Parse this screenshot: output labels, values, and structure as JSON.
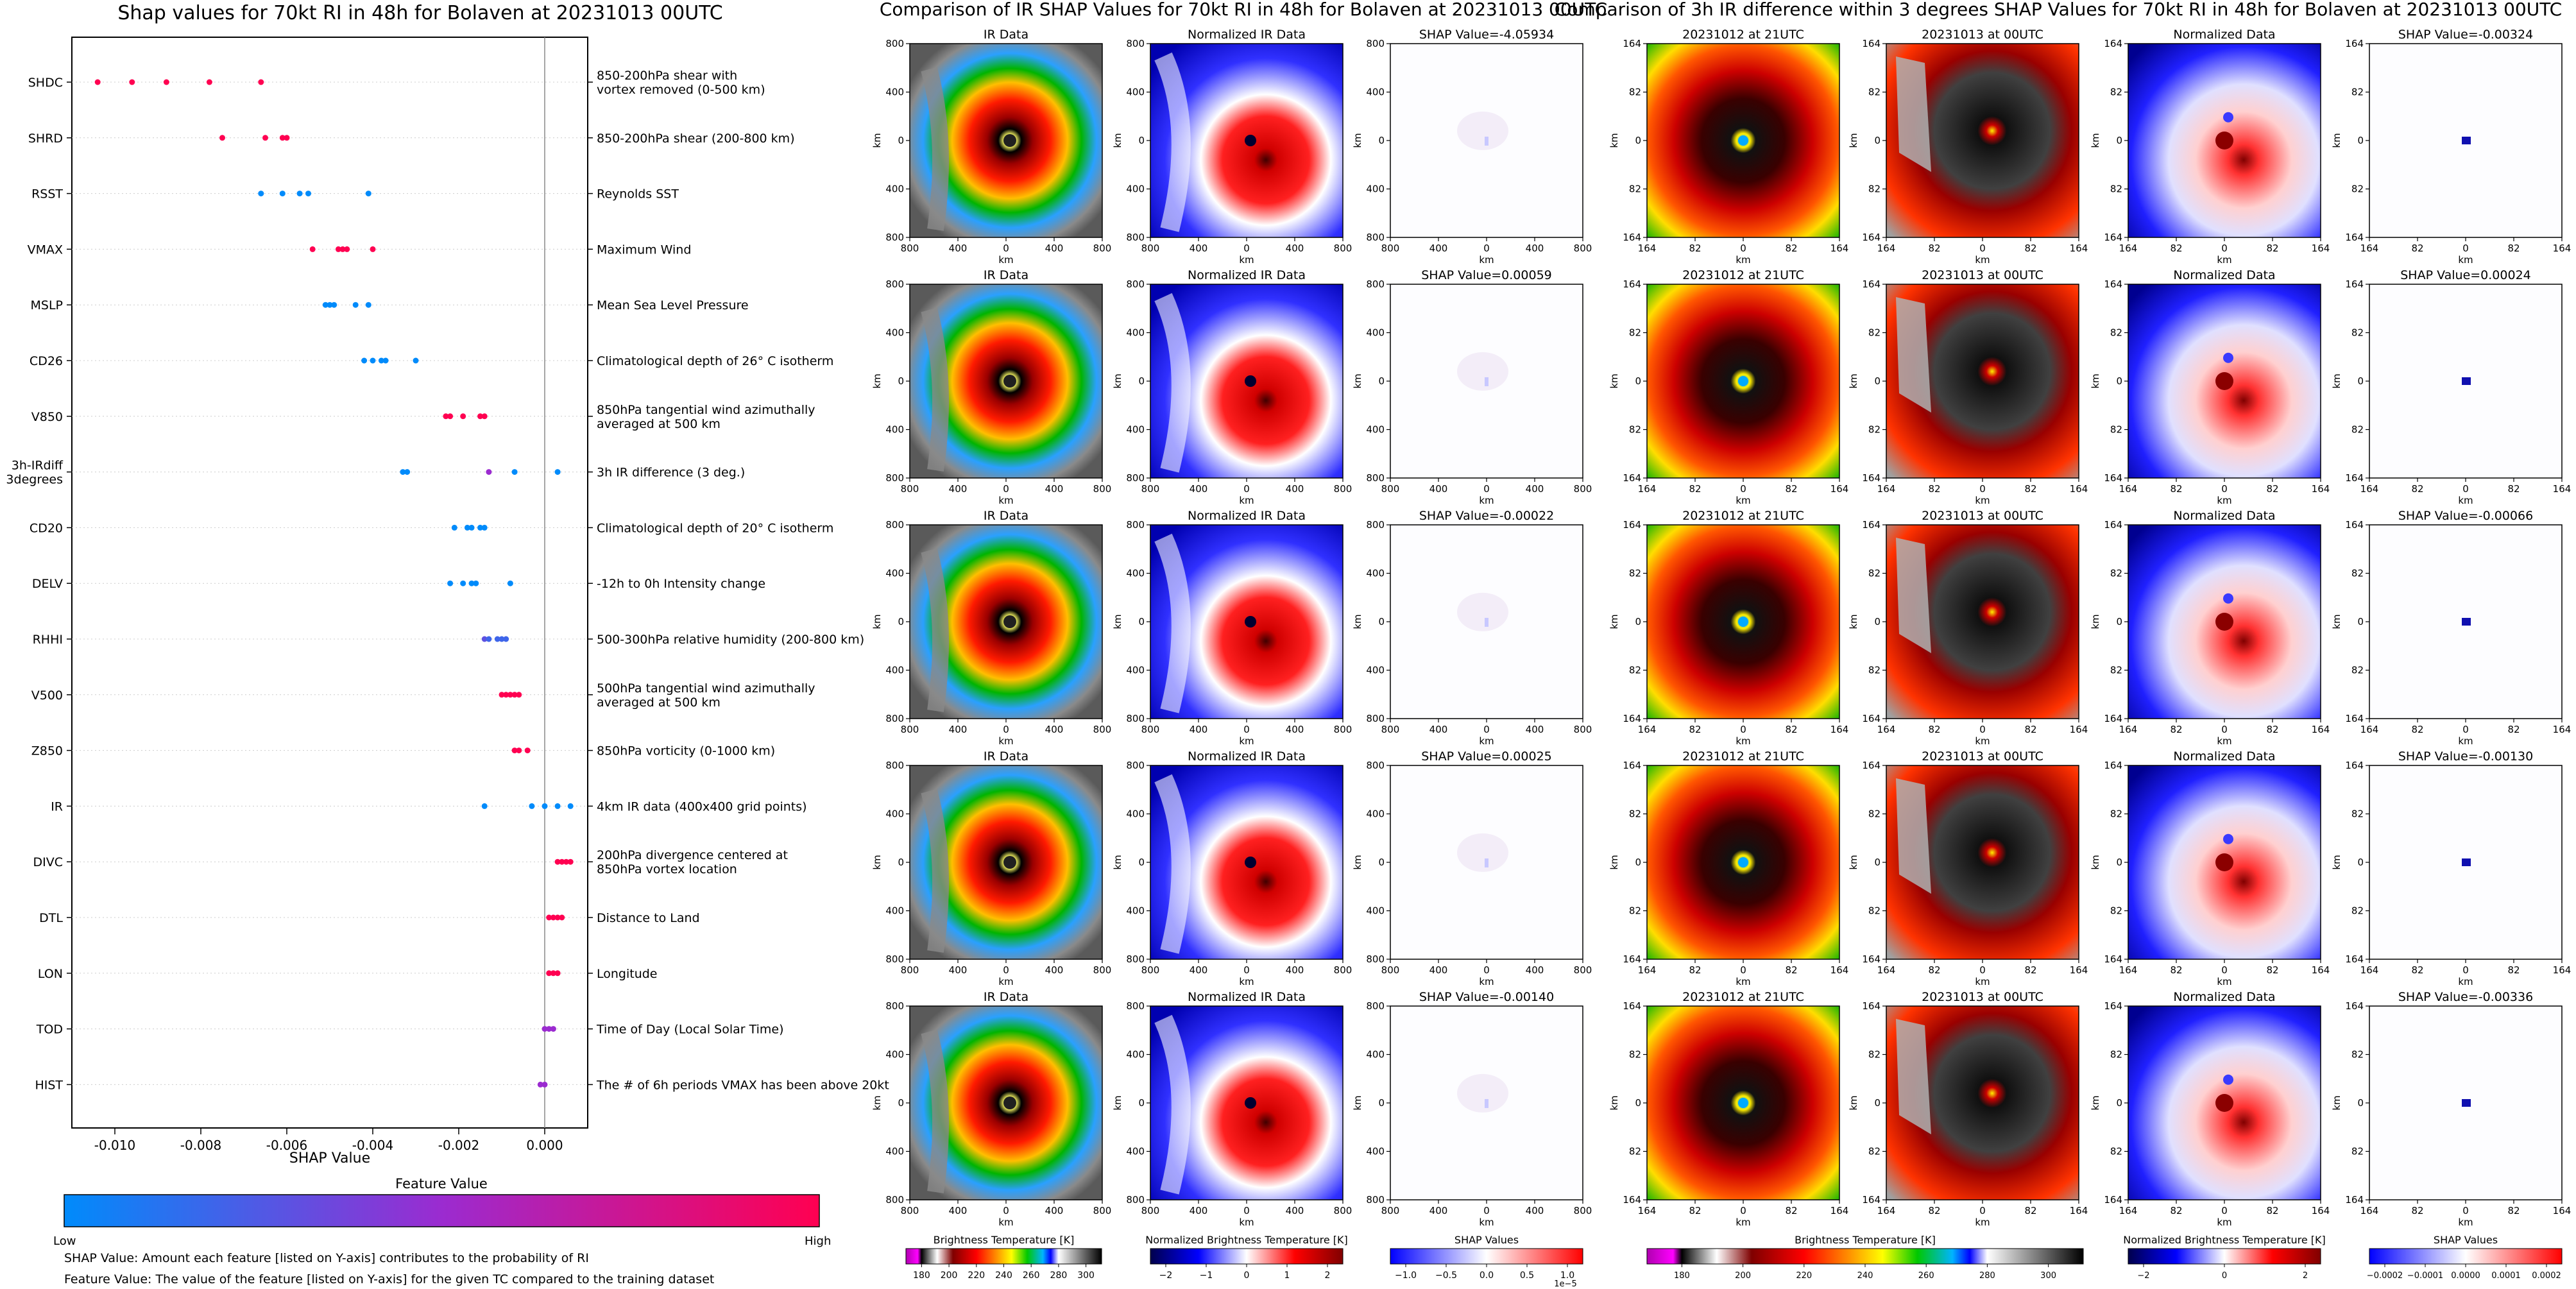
{
  "beeswarm": {
    "title": "Shap values for 70kt RI in 48h for Bolaven at 20231013 00UTC",
    "xlabel": "SHAP Value",
    "colorbar_title": "Feature Value",
    "colorbar_low": "Low",
    "colorbar_high": "High",
    "note1": "SHAP Value: Amount each feature [listed on Y-axis] contributes to the probability of RI",
    "note2": "Feature Value: The value of the feature [listed on Y-axis] for the given TC compared to the training dataset"
  },
  "chart_data": {
    "type": "scatter",
    "title": "Shap values for 70kt RI in 48h for Bolaven at 20231013 00UTC",
    "xlabel": "SHAP Value",
    "xlim": [
      -0.011,
      0.001
    ],
    "xticks": [
      "-0.010",
      "-0.008",
      "-0.006",
      "-0.004",
      "-0.002",
      "0.000"
    ],
    "xtick_values": [
      -0.01,
      -0.008,
      -0.006,
      -0.004,
      -0.002,
      0.0
    ],
    "colors": {
      "low": "#1e88e5",
      "high": "#ff0d57"
    },
    "features": [
      {
        "code": "SHDC",
        "desc": "850-200hPa shear with\nvortex removed (0-500 km)",
        "points": [
          [
            -0.0104,
            1
          ],
          [
            -0.0096,
            1
          ],
          [
            -0.0088,
            1
          ],
          [
            -0.0078,
            1
          ],
          [
            -0.0066,
            1
          ]
        ]
      },
      {
        "code": "SHRD",
        "desc": "850-200hPa shear (200-800 km)",
        "points": [
          [
            -0.0075,
            1
          ],
          [
            -0.0065,
            1
          ],
          [
            -0.0061,
            1
          ],
          [
            -0.006,
            1
          ]
        ]
      },
      {
        "code": "RSST",
        "desc": "Reynolds SST",
        "points": [
          [
            -0.0066,
            0
          ],
          [
            -0.0061,
            0
          ],
          [
            -0.0057,
            0
          ],
          [
            -0.0055,
            0
          ],
          [
            -0.0041,
            0
          ]
        ]
      },
      {
        "code": "VMAX",
        "desc": "Maximum Wind",
        "points": [
          [
            -0.0054,
            1
          ],
          [
            -0.0048,
            1
          ],
          [
            -0.0047,
            1
          ],
          [
            -0.0046,
            1
          ],
          [
            -0.004,
            1
          ]
        ]
      },
      {
        "code": "MSLP",
        "desc": "Mean Sea Level Pressure",
        "points": [
          [
            -0.0051,
            0
          ],
          [
            -0.005,
            0
          ],
          [
            -0.0049,
            0
          ],
          [
            -0.0044,
            0
          ],
          [
            -0.0041,
            0
          ]
        ]
      },
      {
        "code": "CD26",
        "desc": "Climatological depth of 26° C isotherm",
        "points": [
          [
            -0.0042,
            0
          ],
          [
            -0.004,
            0
          ],
          [
            -0.0038,
            0
          ],
          [
            -0.0037,
            0
          ],
          [
            -0.003,
            0
          ]
        ]
      },
      {
        "code": "V850",
        "desc": "850hPa tangential wind azimuthally\naveraged at 500 km",
        "points": [
          [
            -0.0023,
            1
          ],
          [
            -0.0022,
            1
          ],
          [
            -0.0019,
            1
          ],
          [
            -0.0015,
            1
          ],
          [
            -0.0014,
            1
          ]
        ]
      },
      {
        "code": "3h-IRdiff\n3degrees",
        "desc": "3h IR difference (3 deg.)",
        "points": [
          [
            -0.0033,
            0
          ],
          [
            -0.0032,
            0
          ],
          [
            -0.0013,
            0.5
          ],
          [
            -0.0007,
            0
          ],
          [
            0.0003,
            0
          ]
        ]
      },
      {
        "code": "CD20",
        "desc": "Climatological depth of 20° C isotherm",
        "points": [
          [
            -0.0021,
            0
          ],
          [
            -0.0018,
            0
          ],
          [
            -0.0017,
            0
          ],
          [
            -0.0015,
            0
          ],
          [
            -0.0014,
            0
          ]
        ]
      },
      {
        "code": "DELV",
        "desc": "-12h to 0h Intensity change",
        "points": [
          [
            -0.0022,
            0
          ],
          [
            -0.0019,
            0
          ],
          [
            -0.0017,
            0
          ],
          [
            -0.0016,
            0
          ],
          [
            -0.0008,
            0
          ]
        ]
      },
      {
        "code": "RHHI",
        "desc": "500-300hPa relative humidity (200-800 km)",
        "points": [
          [
            -0.0014,
            0.3
          ],
          [
            -0.0013,
            0.2
          ],
          [
            -0.0011,
            0.2
          ],
          [
            -0.001,
            0.2
          ],
          [
            -0.0009,
            0.2
          ]
        ]
      },
      {
        "code": "V500",
        "desc": "500hPa tangential wind azimuthally\naveraged at 500 km",
        "points": [
          [
            -0.001,
            1
          ],
          [
            -0.0009,
            1
          ],
          [
            -0.0008,
            1
          ],
          [
            -0.0007,
            1
          ],
          [
            -0.0006,
            1
          ]
        ]
      },
      {
        "code": "Z850",
        "desc": "850hPa vorticity (0-1000 km)",
        "points": [
          [
            -0.0007,
            1
          ],
          [
            -0.0006,
            1
          ],
          [
            -0.0004,
            1
          ]
        ]
      },
      {
        "code": "IR",
        "desc": "4km IR data (400x400 grid points)",
        "points": [
          [
            -0.0014,
            0
          ],
          [
            -0.0003,
            0
          ],
          [
            0.0,
            0
          ],
          [
            0.0003,
            0
          ],
          [
            0.0006,
            0
          ]
        ]
      },
      {
        "code": "DIVC",
        "desc": "200hPa divergence centered at\n850hPa vortex location",
        "points": [
          [
            0.0003,
            1
          ],
          [
            0.0004,
            1
          ],
          [
            0.0005,
            1
          ],
          [
            0.0006,
            1
          ]
        ]
      },
      {
        "code": "DTL",
        "desc": "Distance to Land",
        "points": [
          [
            0.0001,
            1
          ],
          [
            0.0002,
            1
          ],
          [
            0.0003,
            1
          ],
          [
            0.0004,
            1
          ]
        ]
      },
      {
        "code": "LON",
        "desc": "Longitude",
        "points": [
          [
            0.0001,
            1
          ],
          [
            0.0002,
            1
          ],
          [
            0.0003,
            1
          ]
        ]
      },
      {
        "code": "TOD",
        "desc": "Time of Day (Local Solar Time)",
        "points": [
          [
            0.0,
            0.5
          ],
          [
            0.0001,
            0.5
          ],
          [
            0.0002,
            0.5
          ]
        ]
      },
      {
        "code": "HIST",
        "desc": "The # of 6h periods VMAX has been above 20kt",
        "points": [
          [
            -0.0001,
            0.5
          ],
          [
            0.0,
            0.5
          ]
        ]
      }
    ]
  },
  "ir_panel": {
    "title": "Comparison of IR SHAP Values for 70kt RI in 48h for Bolaven at 20231013 00UTC",
    "col_titles": [
      "IR Data",
      "Normalized IR Data"
    ],
    "shap_titles": [
      "SHAP Value=-4.05934",
      "SHAP Value=0.00059",
      "SHAP Value=-0.00022",
      "SHAP Value=0.00025",
      "SHAP Value=-0.00140"
    ],
    "axis_label": "km",
    "y_ticks": [
      "800",
      "400",
      "0",
      "400",
      "800"
    ],
    "x_ticks": [
      "800",
      "400",
      "0",
      "400",
      "800"
    ],
    "cb_labels": [
      "Brightness Temperature [K]",
      "Normalized Brightness Temperature [K]",
      "SHAP Values"
    ],
    "cb1_ticks": [
      "180",
      "200",
      "220",
      "240",
      "260",
      "280",
      "300"
    ],
    "cb2_ticks": [
      "−2",
      "−1",
      "0",
      "1",
      "2"
    ],
    "cb3_ticks": [
      "−1.0",
      "−0.5",
      "0.0",
      "0.5",
      "1.0"
    ],
    "cb3_exp": "1e−5"
  },
  "diff_panel": {
    "title": "Comparison of 3h IR difference within 3 degrees SHAP Values for 70kt RI in 48h for Bolaven at 20231013 00UTC",
    "col_titles": [
      "20231012 at 21UTC",
      "20231013 at 00UTC",
      "Normalized Data"
    ],
    "shap_titles": [
      "SHAP Value=-0.00324",
      "SHAP Value=0.00024",
      "SHAP Value=-0.00066",
      "SHAP Value=-0.00130",
      "SHAP Value=-0.00336"
    ],
    "axis_label": "km",
    "y_ticks": [
      "164",
      "82",
      "0",
      "82",
      "164"
    ],
    "x_ticks": [
      "164",
      "82",
      "0",
      "82",
      "164"
    ],
    "cb_labels": [
      "Brightness Temperature [K]",
      "Normalized Brightness Temperature [K]",
      "SHAP Values"
    ],
    "cb1_ticks": [
      "180",
      "200",
      "220",
      "240",
      "260",
      "280",
      "300"
    ],
    "cb2_ticks": [
      "−2",
      "0",
      "2"
    ],
    "cb3_ticks": [
      "−0.0002",
      "−0.0001",
      "0.0000",
      "0.0001",
      "0.0002"
    ]
  }
}
